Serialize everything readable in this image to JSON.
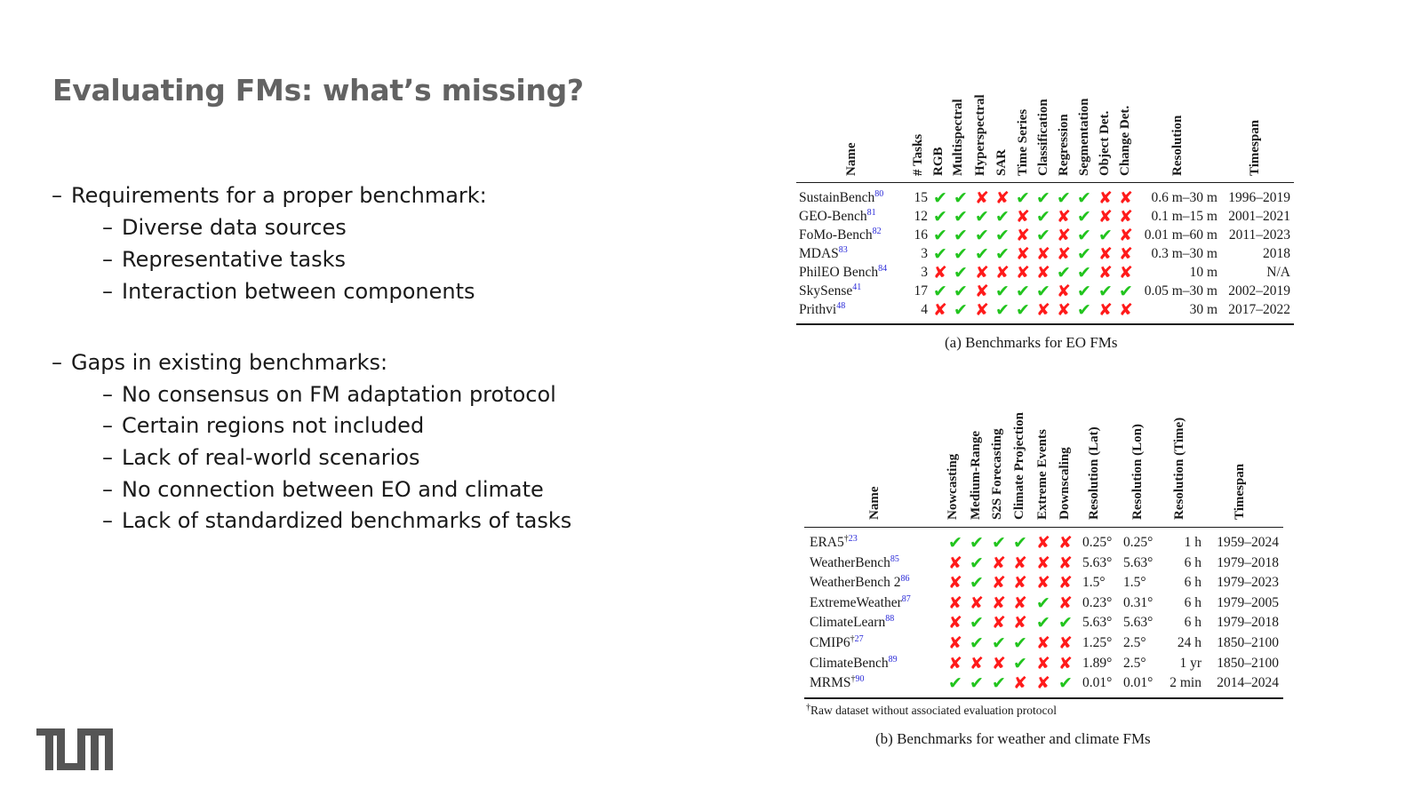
{
  "title": "Evaluating FMs: what’s missing?",
  "bullets": [
    {
      "level": 0,
      "text": "Requirements for a proper benchmark:"
    },
    {
      "level": 1,
      "text": "Diverse data sources"
    },
    {
      "level": 1,
      "text": "Representative tasks"
    },
    {
      "level": 1,
      "text": "Interaction between components"
    },
    {
      "level": 0,
      "text": "Gaps in existing benchmarks:"
    },
    {
      "level": 1,
      "text": "No consensus on FM adaptation protocol"
    },
    {
      "level": 1,
      "text": "Certain regions not included"
    },
    {
      "level": 1,
      "text": "Lack of real-world scenarios"
    },
    {
      "level": 1,
      "text": "No connection between EO and climate"
    },
    {
      "level": 1,
      "text": "Lack of standardized benchmarks of tasks"
    }
  ],
  "dash": "–",
  "logo": "TUM",
  "marks": {
    "yes": "✔",
    "no": "✘"
  },
  "colors": {
    "title": "#636363",
    "check": "#22c41e",
    "cross": "#ff1a1a",
    "ref": "#2a2ad8"
  },
  "table_a": {
    "caption": "(a) Benchmarks for EO FMs",
    "headers": [
      "Name",
      "# Tasks",
      "RGB",
      "Multispectral",
      "Hyperspectral",
      "SAR",
      "Time Series",
      "Classification",
      "Regression",
      "Segmentation",
      "Object Det.",
      "Change Det.",
      "Resolution",
      "Timespan"
    ],
    "rows": [
      {
        "name": "SustainBench",
        "ref": "80",
        "tasks": "15",
        "marks": [
          1,
          1,
          0,
          0,
          1,
          1,
          1,
          1,
          0,
          0
        ],
        "resolution": "0.6 m–30 m",
        "timespan": "1996–2019"
      },
      {
        "name": "GEO-Bench",
        "ref": "81",
        "tasks": "12",
        "marks": [
          1,
          1,
          1,
          1,
          0,
          1,
          0,
          1,
          0,
          0
        ],
        "resolution": "0.1 m–15 m",
        "timespan": "2001–2021"
      },
      {
        "name": "FoMo-Bench",
        "ref": "82",
        "tasks": "16",
        "marks": [
          1,
          1,
          1,
          1,
          0,
          1,
          0,
          1,
          1,
          0
        ],
        "resolution": "0.01 m–60 m",
        "timespan": "2011–2023"
      },
      {
        "name": "MDAS",
        "ref": "83",
        "tasks": "3",
        "marks": [
          1,
          1,
          1,
          1,
          0,
          0,
          0,
          1,
          0,
          0
        ],
        "resolution": "0.3 m–30 m",
        "timespan": "2018"
      },
      {
        "name": "PhilEO Bench",
        "ref": "84",
        "tasks": "3",
        "marks": [
          0,
          1,
          0,
          0,
          0,
          0,
          1,
          1,
          0,
          0
        ],
        "resolution": "10 m",
        "timespan": "N/A"
      },
      {
        "name": "SkySense",
        "ref": "41",
        "tasks": "17",
        "marks": [
          1,
          1,
          0,
          1,
          1,
          1,
          0,
          1,
          1,
          1
        ],
        "resolution": "0.05 m–30 m",
        "timespan": "2002–2019"
      },
      {
        "name": "Prithvi",
        "ref": "48",
        "tasks": "4",
        "marks": [
          0,
          1,
          0,
          1,
          1,
          0,
          0,
          1,
          0,
          0
        ],
        "resolution": "30 m",
        "timespan": "2017–2022"
      }
    ]
  },
  "table_b": {
    "caption": "(b) Benchmarks for weather and climate FMs",
    "headers": [
      "Name",
      "Nowcasting",
      "Medium-Range",
      "S2S Forecasting",
      "Climate Projection",
      "Extreme Events",
      "Downscaling",
      "Resolution (Lat)",
      "Resolution (Lon)",
      "Resolution (Time)",
      "Timespan"
    ],
    "rows": [
      {
        "name": "ERA5",
        "dagger": "†",
        "ref": "23",
        "marks": [
          1,
          1,
          1,
          1,
          0,
          0
        ],
        "lat": "0.25°",
        "lon": "0.25°",
        "time": "1 h",
        "timespan": "1959–2024"
      },
      {
        "name": "WeatherBench",
        "dagger": "",
        "ref": "85",
        "marks": [
          0,
          1,
          0,
          0,
          0,
          0
        ],
        "lat": "5.63°",
        "lon": "5.63°",
        "time": "6 h",
        "timespan": "1979–2018"
      },
      {
        "name": "WeatherBench 2",
        "dagger": "",
        "ref": "86",
        "marks": [
          0,
          1,
          0,
          0,
          0,
          0
        ],
        "lat": "1.5°",
        "lon": "1.5°",
        "time": "6 h",
        "timespan": "1979–2023"
      },
      {
        "name": "ExtremeWeather",
        "dagger": "",
        "ref": "87",
        "marks": [
          0,
          0,
          0,
          0,
          1,
          0
        ],
        "lat": "0.23°",
        "lon": "0.31°",
        "time": "6 h",
        "timespan": "1979–2005"
      },
      {
        "name": "ClimateLearn",
        "dagger": "",
        "ref": "88",
        "marks": [
          0,
          1,
          0,
          0,
          1,
          1
        ],
        "lat": "5.63°",
        "lon": "5.63°",
        "time": "6 h",
        "timespan": "1979–2018"
      },
      {
        "name": "CMIP6",
        "dagger": "†",
        "ref": "27",
        "marks": [
          0,
          1,
          1,
          1,
          0,
          0
        ],
        "lat": "1.25°",
        "lon": "2.5°",
        "time": "24 h",
        "timespan": "1850–2100"
      },
      {
        "name": "ClimateBench",
        "dagger": "",
        "ref": "89",
        "marks": [
          0,
          0,
          0,
          1,
          0,
          0
        ],
        "lat": "1.89°",
        "lon": "2.5°",
        "time": "1 yr",
        "timespan": "1850–2100"
      },
      {
        "name": "MRMS",
        "dagger": "†",
        "ref": "90",
        "marks": [
          1,
          1,
          1,
          0,
          0,
          1
        ],
        "lat": "0.01°",
        "lon": "0.01°",
        "time": "2 min",
        "timespan": "2014–2024"
      }
    ],
    "footnote_mark": "†",
    "footnote": "Raw dataset without associated evaluation protocol"
  }
}
